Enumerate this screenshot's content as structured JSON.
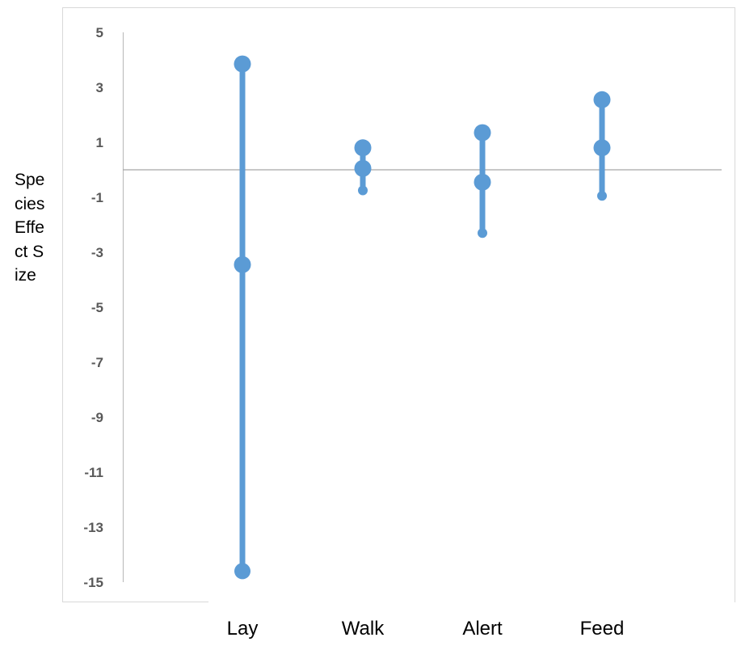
{
  "chart_data": {
    "type": "range",
    "title": "",
    "xlabel": "",
    "ylabel": "Species Effect Size",
    "categories": [
      "Lay",
      "Walk",
      "Alert",
      "Feed"
    ],
    "series": [
      {
        "name": "",
        "values": [
          3.85,
          0.8,
          1.35,
          2.55
        ]
      },
      {
        "name": "",
        "values": [
          -3.45,
          0.05,
          -0.45,
          0.8
        ]
      },
      {
        "name": "",
        "values": [
          -14.6,
          -0.75,
          -2.3,
          -0.95
        ]
      }
    ],
    "ylim": [
      -15,
      5
    ],
    "yticks": [
      5,
      3,
      1,
      -1,
      -3,
      -5,
      -7,
      -9,
      -11,
      -13,
      -15
    ],
    "reference_line": 0,
    "grid": false,
    "legend": "none",
    "colors": {
      "series": "#5b9bd5",
      "axis": "#bfbfbf",
      "tick_text": "#595959"
    }
  }
}
